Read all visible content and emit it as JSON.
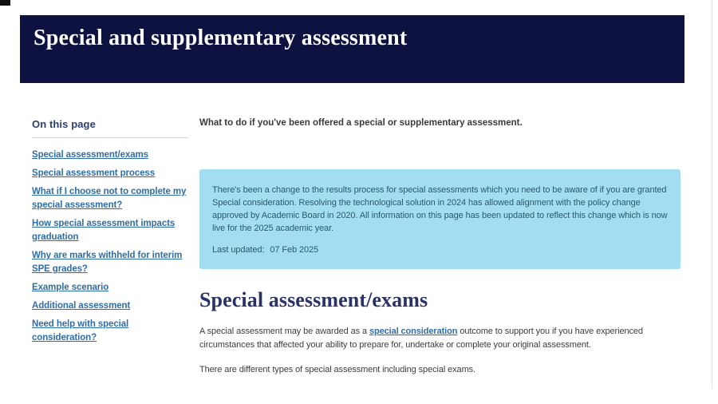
{
  "header": {
    "title": "Special and supplementary assessment",
    "background_color": "#0d1240"
  },
  "sidebar": {
    "heading": "On this page",
    "items": [
      {
        "label": "Special assessment/exams"
      },
      {
        "label": "Special assessment process"
      },
      {
        "label": "What if I choose not to complete my special assessment?"
      },
      {
        "label": "How special assessment impacts graduation"
      },
      {
        "label": "Why are marks withheld for interim SPE grades?"
      },
      {
        "label": "Example scenario"
      },
      {
        "label": "Additional assessment"
      },
      {
        "label": "Need help with special consideration?"
      }
    ]
  },
  "main": {
    "intro": "What to do if you've been offered a special or supplementary assessment.",
    "notice": {
      "body": "There's been a change to the results process for special assessments which you need to be aware of if you are granted Special consideration. Resolving the technological solution in 2024 has allowed alignment with the policy change approved by Academic Board in 2020. All information on this page has been updated to reflect this change which is now live for the 2025 academic year.",
      "last_updated_label": "Last updated:",
      "last_updated_value": "07 Feb 2025",
      "background_color": "#a3ddf2"
    },
    "section": {
      "heading": "Special assessment/exams",
      "para1_before": "A special assessment may be awarded as a ",
      "para1_link": "special consideration",
      "para1_after": " outcome to support you if you have experienced circumstances that affected your ability to prepare for, undertake or complete your original assessment.",
      "para2": "There are different types of special assessment including special exams."
    }
  },
  "colors": {
    "link_blue": "#2f6da9",
    "heading_navy": "#2b3366",
    "banner_navy": "#0d1240",
    "notice_blue": "#a3ddf2"
  }
}
